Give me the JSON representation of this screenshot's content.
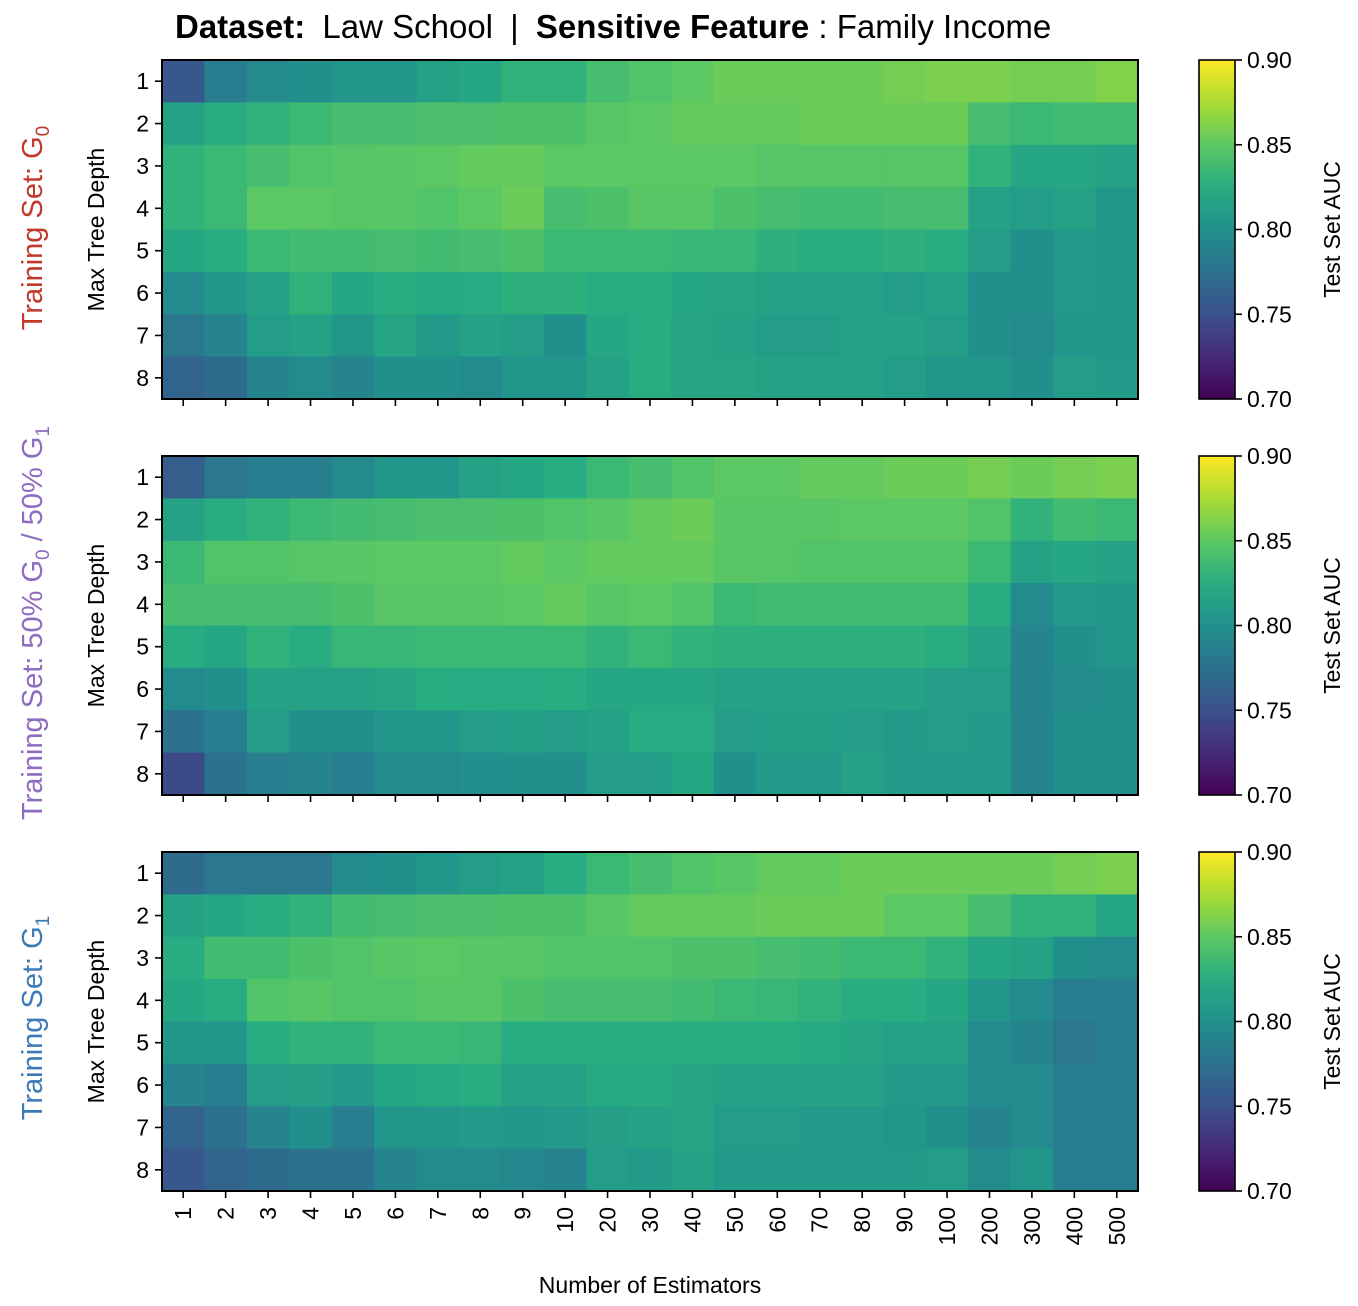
{
  "title": {
    "dataset_label": "Dataset:",
    "dataset_value": "Law School",
    "separator": "|",
    "feature_label": "Sensitive Feature",
    "feature_value": ": Family Income"
  },
  "row_labels": [
    {
      "prefix": "Training Set: G",
      "sub": "0",
      "mid": "",
      "sub2": "",
      "color": "#c0392b"
    },
    {
      "prefix": "Training Set: 50% G",
      "sub": "0",
      "mid": " / 50% G",
      "sub2": "1",
      "color": "#8e6cc0"
    },
    {
      "prefix": "Training Set: G",
      "sub": "1",
      "mid": "",
      "sub2": "",
      "color": "#3d7ab8"
    }
  ],
  "colormap": "viridis",
  "chart_data": [
    {
      "type": "heatmap",
      "title": "",
      "xlabel": "Number of Estimators",
      "ylabel": "Max Tree Depth",
      "colorbar_label": "Test Set AUC",
      "clim": [
        0.7,
        0.9
      ],
      "colorbar_ticks": [
        "0.90",
        "0.85",
        "0.80",
        "0.75",
        "0.70"
      ],
      "x": [
        "1",
        "2",
        "3",
        "4",
        "5",
        "6",
        "7",
        "8",
        "9",
        "10",
        "20",
        "30",
        "40",
        "50",
        "60",
        "70",
        "80",
        "90",
        "100",
        "200",
        "300",
        "400",
        "500"
      ],
      "y": [
        "1",
        "2",
        "3",
        "4",
        "5",
        "6",
        "7",
        "8"
      ],
      "values": [
        [
          0.755,
          0.785,
          0.795,
          0.8,
          0.805,
          0.805,
          0.815,
          0.82,
          0.83,
          0.83,
          0.84,
          0.845,
          0.85,
          0.855,
          0.855,
          0.855,
          0.855,
          0.858,
          0.86,
          0.86,
          0.858,
          0.858,
          0.862
        ],
        [
          0.815,
          0.825,
          0.83,
          0.835,
          0.84,
          0.84,
          0.842,
          0.842,
          0.843,
          0.843,
          0.848,
          0.85,
          0.853,
          0.853,
          0.853,
          0.855,
          0.855,
          0.855,
          0.855,
          0.84,
          0.835,
          0.838,
          0.838
        ],
        [
          0.83,
          0.835,
          0.84,
          0.845,
          0.847,
          0.848,
          0.85,
          0.852,
          0.853,
          0.85,
          0.85,
          0.85,
          0.85,
          0.85,
          0.847,
          0.847,
          0.847,
          0.847,
          0.847,
          0.83,
          0.82,
          0.82,
          0.815
        ],
        [
          0.83,
          0.835,
          0.85,
          0.85,
          0.848,
          0.848,
          0.845,
          0.85,
          0.855,
          0.84,
          0.843,
          0.848,
          0.848,
          0.843,
          0.84,
          0.838,
          0.838,
          0.84,
          0.84,
          0.815,
          0.81,
          0.815,
          0.805
        ],
        [
          0.82,
          0.825,
          0.835,
          0.838,
          0.838,
          0.84,
          0.838,
          0.84,
          0.843,
          0.835,
          0.835,
          0.835,
          0.833,
          0.833,
          0.828,
          0.825,
          0.825,
          0.828,
          0.825,
          0.81,
          0.8,
          0.808,
          0.805
        ],
        [
          0.795,
          0.805,
          0.815,
          0.83,
          0.82,
          0.825,
          0.822,
          0.823,
          0.828,
          0.828,
          0.825,
          0.825,
          0.82,
          0.818,
          0.815,
          0.815,
          0.815,
          0.81,
          0.815,
          0.8,
          0.8,
          0.808,
          0.805
        ],
        [
          0.78,
          0.79,
          0.81,
          0.815,
          0.805,
          0.818,
          0.808,
          0.815,
          0.81,
          0.8,
          0.82,
          0.825,
          0.818,
          0.815,
          0.81,
          0.81,
          0.815,
          0.815,
          0.81,
          0.8,
          0.795,
          0.805,
          0.805
        ],
        [
          0.765,
          0.77,
          0.79,
          0.795,
          0.79,
          0.8,
          0.8,
          0.795,
          0.805,
          0.805,
          0.815,
          0.825,
          0.818,
          0.818,
          0.815,
          0.815,
          0.815,
          0.81,
          0.805,
          0.805,
          0.8,
          0.81,
          0.808
        ]
      ]
    },
    {
      "type": "heatmap",
      "title": "",
      "xlabel": "Number of Estimators",
      "ylabel": "Max Tree Depth",
      "colorbar_label": "Test Set AUC",
      "clim": [
        0.7,
        0.9
      ],
      "colorbar_ticks": [
        "0.90",
        "0.85",
        "0.80",
        "0.75",
        "0.70"
      ],
      "x": [
        "1",
        "2",
        "3",
        "4",
        "5",
        "6",
        "7",
        "8",
        "9",
        "10",
        "20",
        "30",
        "40",
        "50",
        "60",
        "70",
        "80",
        "90",
        "100",
        "200",
        "300",
        "400",
        "500"
      ],
      "y": [
        "1",
        "2",
        "3",
        "4",
        "5",
        "6",
        "7",
        "8"
      ],
      "values": [
        [
          0.76,
          0.78,
          0.785,
          0.785,
          0.795,
          0.805,
          0.805,
          0.815,
          0.82,
          0.825,
          0.835,
          0.84,
          0.845,
          0.85,
          0.85,
          0.852,
          0.852,
          0.855,
          0.855,
          0.858,
          0.855,
          0.858,
          0.86
        ],
        [
          0.815,
          0.825,
          0.83,
          0.835,
          0.838,
          0.84,
          0.842,
          0.842,
          0.843,
          0.845,
          0.848,
          0.852,
          0.855,
          0.848,
          0.848,
          0.848,
          0.85,
          0.85,
          0.85,
          0.845,
          0.83,
          0.838,
          0.835
        ],
        [
          0.835,
          0.845,
          0.845,
          0.847,
          0.848,
          0.85,
          0.85,
          0.85,
          0.852,
          0.85,
          0.852,
          0.852,
          0.852,
          0.848,
          0.847,
          0.845,
          0.845,
          0.845,
          0.845,
          0.835,
          0.815,
          0.82,
          0.815
        ],
        [
          0.84,
          0.84,
          0.84,
          0.84,
          0.843,
          0.848,
          0.848,
          0.848,
          0.85,
          0.852,
          0.848,
          0.85,
          0.845,
          0.835,
          0.838,
          0.838,
          0.838,
          0.838,
          0.838,
          0.825,
          0.795,
          0.808,
          0.805
        ],
        [
          0.825,
          0.82,
          0.83,
          0.825,
          0.833,
          0.833,
          0.835,
          0.835,
          0.835,
          0.835,
          0.83,
          0.835,
          0.83,
          0.828,
          0.828,
          0.828,
          0.828,
          0.828,
          0.825,
          0.815,
          0.79,
          0.8,
          0.805
        ],
        [
          0.795,
          0.8,
          0.815,
          0.815,
          0.815,
          0.818,
          0.825,
          0.823,
          0.823,
          0.825,
          0.82,
          0.82,
          0.82,
          0.815,
          0.815,
          0.815,
          0.815,
          0.815,
          0.81,
          0.81,
          0.79,
          0.795,
          0.8
        ],
        [
          0.775,
          0.785,
          0.81,
          0.8,
          0.8,
          0.805,
          0.805,
          0.81,
          0.813,
          0.81,
          0.815,
          0.823,
          0.823,
          0.81,
          0.813,
          0.813,
          0.81,
          0.808,
          0.81,
          0.808,
          0.79,
          0.8,
          0.8
        ],
        [
          0.745,
          0.775,
          0.785,
          0.79,
          0.785,
          0.795,
          0.795,
          0.798,
          0.8,
          0.8,
          0.81,
          0.81,
          0.82,
          0.8,
          0.808,
          0.808,
          0.815,
          0.808,
          0.808,
          0.808,
          0.79,
          0.8,
          0.8
        ]
      ]
    },
    {
      "type": "heatmap",
      "title": "",
      "xlabel": "Number of Estimators",
      "ylabel": "Max Tree Depth",
      "colorbar_label": "Test Set AUC",
      "clim": [
        0.7,
        0.9
      ],
      "colorbar_ticks": [
        "0.90",
        "0.85",
        "0.80",
        "0.75",
        "0.70"
      ],
      "x": [
        "1",
        "2",
        "3",
        "4",
        "5",
        "6",
        "7",
        "8",
        "9",
        "10",
        "20",
        "30",
        "40",
        "50",
        "60",
        "70",
        "80",
        "90",
        "100",
        "200",
        "300",
        "400",
        "500"
      ],
      "y": [
        "1",
        "2",
        "3",
        "4",
        "5",
        "6",
        "7",
        "8"
      ],
      "values": [
        [
          0.77,
          0.78,
          0.78,
          0.78,
          0.795,
          0.8,
          0.805,
          0.81,
          0.815,
          0.825,
          0.835,
          0.84,
          0.845,
          0.848,
          0.852,
          0.852,
          0.855,
          0.855,
          0.855,
          0.855,
          0.855,
          0.858,
          0.86
        ],
        [
          0.815,
          0.82,
          0.825,
          0.83,
          0.838,
          0.84,
          0.842,
          0.842,
          0.843,
          0.843,
          0.848,
          0.852,
          0.852,
          0.853,
          0.855,
          0.855,
          0.855,
          0.85,
          0.85,
          0.84,
          0.83,
          0.83,
          0.82
        ],
        [
          0.825,
          0.838,
          0.838,
          0.843,
          0.845,
          0.848,
          0.85,
          0.848,
          0.848,
          0.845,
          0.845,
          0.845,
          0.843,
          0.843,
          0.84,
          0.838,
          0.835,
          0.835,
          0.83,
          0.82,
          0.815,
          0.8,
          0.795
        ],
        [
          0.82,
          0.825,
          0.845,
          0.848,
          0.845,
          0.845,
          0.848,
          0.848,
          0.843,
          0.84,
          0.84,
          0.84,
          0.838,
          0.835,
          0.833,
          0.83,
          0.825,
          0.825,
          0.82,
          0.805,
          0.795,
          0.785,
          0.785
        ],
        [
          0.805,
          0.805,
          0.825,
          0.83,
          0.83,
          0.835,
          0.835,
          0.833,
          0.825,
          0.825,
          0.825,
          0.825,
          0.825,
          0.825,
          0.825,
          0.822,
          0.818,
          0.815,
          0.815,
          0.795,
          0.79,
          0.78,
          0.785
        ],
        [
          0.79,
          0.785,
          0.81,
          0.812,
          0.808,
          0.82,
          0.822,
          0.825,
          0.815,
          0.815,
          0.822,
          0.822,
          0.818,
          0.815,
          0.815,
          0.815,
          0.815,
          0.808,
          0.808,
          0.795,
          0.795,
          0.785,
          0.785
        ],
        [
          0.765,
          0.775,
          0.79,
          0.8,
          0.785,
          0.805,
          0.805,
          0.808,
          0.805,
          0.808,
          0.812,
          0.815,
          0.818,
          0.81,
          0.81,
          0.808,
          0.808,
          0.805,
          0.8,
          0.79,
          0.795,
          0.785,
          0.785
        ],
        [
          0.755,
          0.765,
          0.77,
          0.775,
          0.775,
          0.79,
          0.795,
          0.795,
          0.793,
          0.79,
          0.81,
          0.808,
          0.815,
          0.808,
          0.808,
          0.808,
          0.808,
          0.808,
          0.81,
          0.795,
          0.805,
          0.785,
          0.785
        ]
      ]
    }
  ]
}
